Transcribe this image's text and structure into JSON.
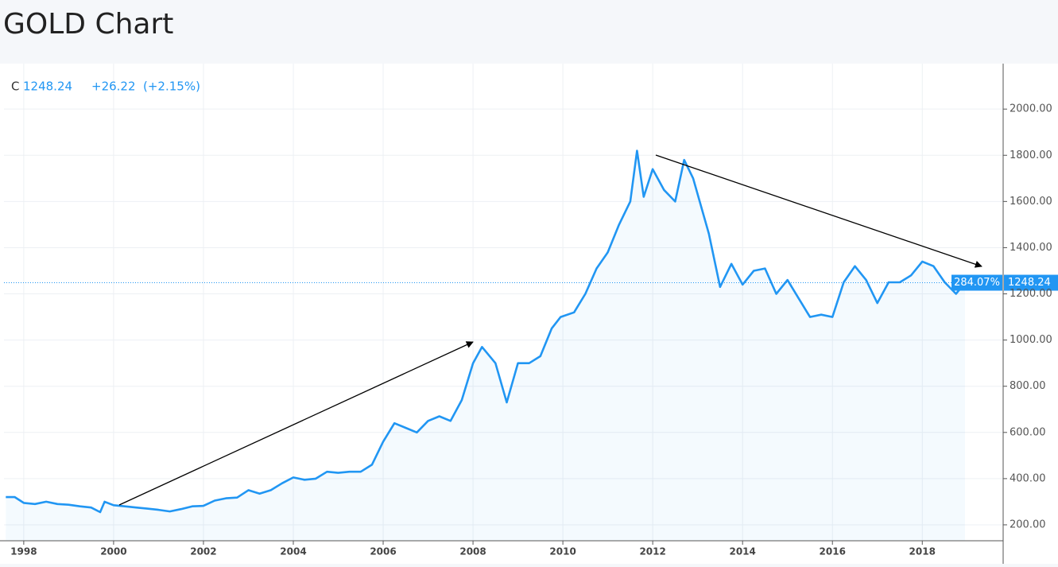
{
  "page_title": "GOLD Chart",
  "header": {
    "close_label": "C",
    "change": "+26.22",
    "change_pct": "(+2.15%)",
    "percent_badge": "284.07%"
  },
  "chart_data": {
    "type": "line",
    "x": [
      1997.6,
      1997.8,
      1998.0,
      1998.25,
      1998.5,
      1998.75,
      1999.0,
      1999.25,
      1999.5,
      1999.7,
      1999.8,
      2000.0,
      2000.25,
      2000.5,
      2000.75,
      2001.0,
      2001.25,
      2001.5,
      2001.75,
      2002.0,
      2002.25,
      2002.5,
      2002.75,
      2003.0,
      2003.25,
      2003.5,
      2003.75,
      2004.0,
      2004.25,
      2004.5,
      2004.75,
      2005.0,
      2005.25,
      2005.5,
      2005.75,
      2006.0,
      2006.25,
      2006.5,
      2006.75,
      2007.0,
      2007.25,
      2007.5,
      2007.75,
      2008.0,
      2008.2,
      2008.5,
      2008.75,
      2009.0,
      2009.25,
      2009.5,
      2009.75,
      2009.95,
      2010.25,
      2010.5,
      2010.75,
      2011.0,
      2011.25,
      2011.5,
      2011.65,
      2011.8,
      2012.0,
      2012.25,
      2012.5,
      2012.7,
      2012.9,
      2013.25,
      2013.5,
      2013.75,
      2014.0,
      2014.25,
      2014.5,
      2014.75,
      2015.0,
      2015.25,
      2015.5,
      2015.75,
      2016.0,
      2016.25,
      2016.5,
      2016.75,
      2017.0,
      2017.25,
      2017.5,
      2017.75,
      2018.0,
      2018.25,
      2018.5,
      2018.75,
      2018.95
    ],
    "values": [
      320,
      320,
      295,
      290,
      300,
      290,
      287,
      280,
      275,
      255,
      300,
      285,
      280,
      275,
      270,
      265,
      258,
      268,
      280,
      282,
      305,
      315,
      318,
      350,
      335,
      350,
      380,
      405,
      395,
      400,
      430,
      425,
      430,
      430,
      460,
      560,
      640,
      620,
      600,
      650,
      670,
      650,
      740,
      900,
      970,
      900,
      730,
      900,
      900,
      930,
      1050,
      1100,
      1120,
      1200,
      1310,
      1380,
      1500,
      1600,
      1820,
      1620,
      1740,
      1650,
      1600,
      1780,
      1700,
      1460,
      1230,
      1330,
      1240,
      1300,
      1310,
      1200,
      1260,
      1180,
      1100,
      1110,
      1100,
      1250,
      1320,
      1260,
      1160,
      1250,
      1250,
      1280,
      1340,
      1320,
      1250,
      1200,
      1248.24
    ],
    "color": "#2196f3",
    "xlim": [
      1997.56,
      2019.8
    ],
    "ylim": [
      131,
      2190
    ],
    "xticks": [
      1998,
      2000,
      2002,
      2004,
      2006,
      2008,
      2010,
      2012,
      2014,
      2016,
      2018
    ],
    "yticks": [
      {
        "value": 200,
        "label": "200.00"
      },
      {
        "value": 400,
        "label": "400.00"
      },
      {
        "value": 600,
        "label": "600.00"
      },
      {
        "value": 800,
        "label": "800.00"
      },
      {
        "value": 1000,
        "label": "1000.00"
      },
      {
        "value": 1200,
        "label": "1200.00"
      },
      {
        "value": 1400,
        "label": "1400.00"
      },
      {
        "value": 1600,
        "label": "1600.00"
      },
      {
        "value": 1800,
        "label": "1800.00"
      },
      {
        "value": 2000,
        "label": "2000.00"
      }
    ],
    "grid": true
  }
}
